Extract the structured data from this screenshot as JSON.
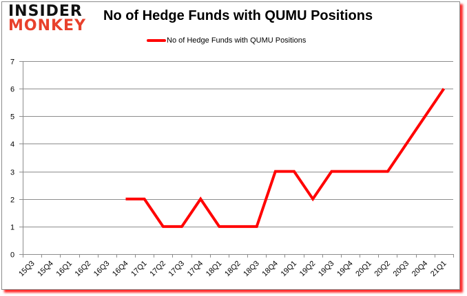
{
  "logo": {
    "line1": "INSIDER",
    "line2": "MONKEY"
  },
  "colors": {
    "series": "#ff0000",
    "grid": "#8c8c8c",
    "shadow": "#ff2a2a",
    "logo_red": "#e8412c"
  },
  "chart_data": {
    "type": "line",
    "title": "No of Hedge Funds with QUMU Positions",
    "xlabel": "",
    "ylabel": "",
    "ylim": [
      0,
      7
    ],
    "yticks": [
      0,
      1,
      2,
      3,
      4,
      5,
      6,
      7
    ],
    "grid": true,
    "legend_position": "top",
    "categories": [
      "15Q3",
      "15Q4",
      "16Q1",
      "16Q2",
      "16Q3",
      "16Q4",
      "17Q1",
      "17Q2",
      "17Q3",
      "17Q4",
      "18Q1",
      "18Q2",
      "18Q3",
      "18Q4",
      "19Q1",
      "19Q2",
      "19Q3",
      "19Q4",
      "20Q1",
      "20Q2",
      "20Q3",
      "20Q4",
      "21Q1"
    ],
    "series": [
      {
        "name": "No of Hedge Funds with QUMU Positions",
        "values": [
          null,
          null,
          null,
          null,
          null,
          2,
          2,
          1,
          1,
          2,
          1,
          1,
          1,
          3,
          3,
          2,
          3,
          3,
          3,
          3,
          4,
          5,
          6
        ]
      }
    ]
  }
}
